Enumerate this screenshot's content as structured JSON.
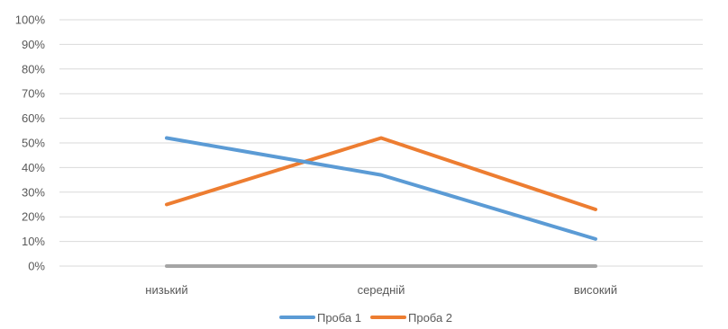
{
  "chart_data": {
    "type": "line",
    "categories": [
      "низький",
      "середній",
      "високий"
    ],
    "ylim": [
      0,
      100
    ],
    "y_ticks": [
      "0%",
      "10%",
      "20%",
      "30%",
      "40%",
      "50%",
      "60%",
      "70%",
      "80%",
      "90%",
      "100%"
    ],
    "grid": true,
    "legend_position": "bottom",
    "series": [
      {
        "name": "Проба 1",
        "values": [
          52,
          37,
          11
        ],
        "color": "#5b9bd5"
      },
      {
        "name": "Проба 2",
        "values": [
          25,
          52,
          23
        ],
        "color": "#ed7d31"
      },
      {
        "name": "",
        "values": [
          0,
          0,
          0
        ],
        "color": "#a5a5a5"
      }
    ]
  }
}
